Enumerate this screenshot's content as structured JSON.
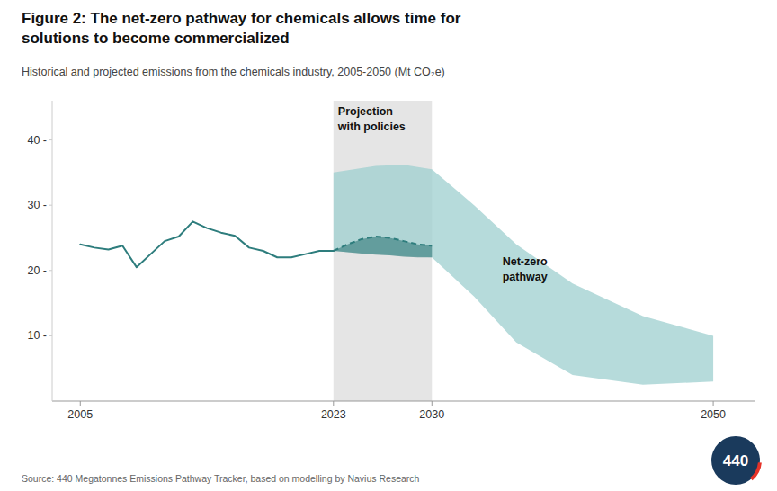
{
  "chart_data": {
    "type": "line",
    "title": "Figure 2: The net-zero pathway for chemicals allows time for\nsolutions to become commercialized",
    "subtitle": "Historical and projected emissions from the chemicals industry, 2005-2050 (Mt CO₂e)",
    "source": "Source: 440 Megatonnes Emissions Pathway Tracker, based on modelling by Navius Research",
    "logo": "440",
    "xlim": [
      2003,
      2053
    ],
    "xticks": [
      2005,
      2023,
      2030,
      2050
    ],
    "ylim": [
      0,
      46
    ],
    "yticks": [
      {
        "value": 10,
        "label": "10 -"
      },
      {
        "value": 20,
        "label": "20 -"
      },
      {
        "value": 30,
        "label": "30 -"
      },
      {
        "value": 40,
        "label": "40 -"
      }
    ],
    "grid": false,
    "series": [
      {
        "type": "line",
        "line_style": "solid",
        "color": "#2e7d7d",
        "x": [
          2005,
          2006,
          2007,
          2008,
          2009,
          2010,
          2011,
          2012,
          2013,
          2014,
          2015,
          2016,
          2017,
          2018,
          2019,
          2020,
          2021,
          2022,
          2023
        ],
        "values": [
          24.0,
          23.5,
          23.2,
          23.8,
          20.5,
          22.5,
          24.5,
          25.2,
          27.5,
          26.5,
          25.8,
          25.3,
          23.5,
          23.0,
          22.0,
          22.0,
          22.5,
          23.0,
          23.0
        ]
      },
      {
        "type": "line",
        "line_style": "dashed",
        "color": "#2e7d7d",
        "x": [
          2023,
          2024,
          2025,
          2026,
          2027,
          2028,
          2029,
          2030
        ],
        "values": [
          23.0,
          24.0,
          24.8,
          25.2,
          25.0,
          24.5,
          24.0,
          23.8
        ]
      },
      {
        "type": "band",
        "color": "#9ecfcf",
        "x": [
          2023,
          2026,
          2028,
          2030,
          2033,
          2036,
          2040,
          2045,
          2050
        ],
        "upper": [
          35.0,
          36.0,
          36.2,
          35.5,
          30.0,
          24.0,
          18.0,
          13.0,
          10.0
        ],
        "lower": [
          23.0,
          22.5,
          22.2,
          22.0,
          16.0,
          9.0,
          4.0,
          2.5,
          3.0
        ]
      },
      {
        "type": "band",
        "color": "#4a8a8a",
        "x": [
          2023,
          2024,
          2025,
          2026,
          2027,
          2028,
          2029,
          2030
        ],
        "upper": [
          23.0,
          24.0,
          24.8,
          25.2,
          25.0,
          24.5,
          24.0,
          23.8
        ],
        "lower": [
          23.0,
          22.8,
          22.6,
          22.4,
          22.3,
          22.1,
          22.0,
          22.0
        ]
      }
    ],
    "annotations": [
      {
        "text": "Projection\nwith policies",
        "x_range": [
          2023,
          2030
        ]
      },
      {
        "text": "Net-zero\npathway"
      }
    ]
  }
}
